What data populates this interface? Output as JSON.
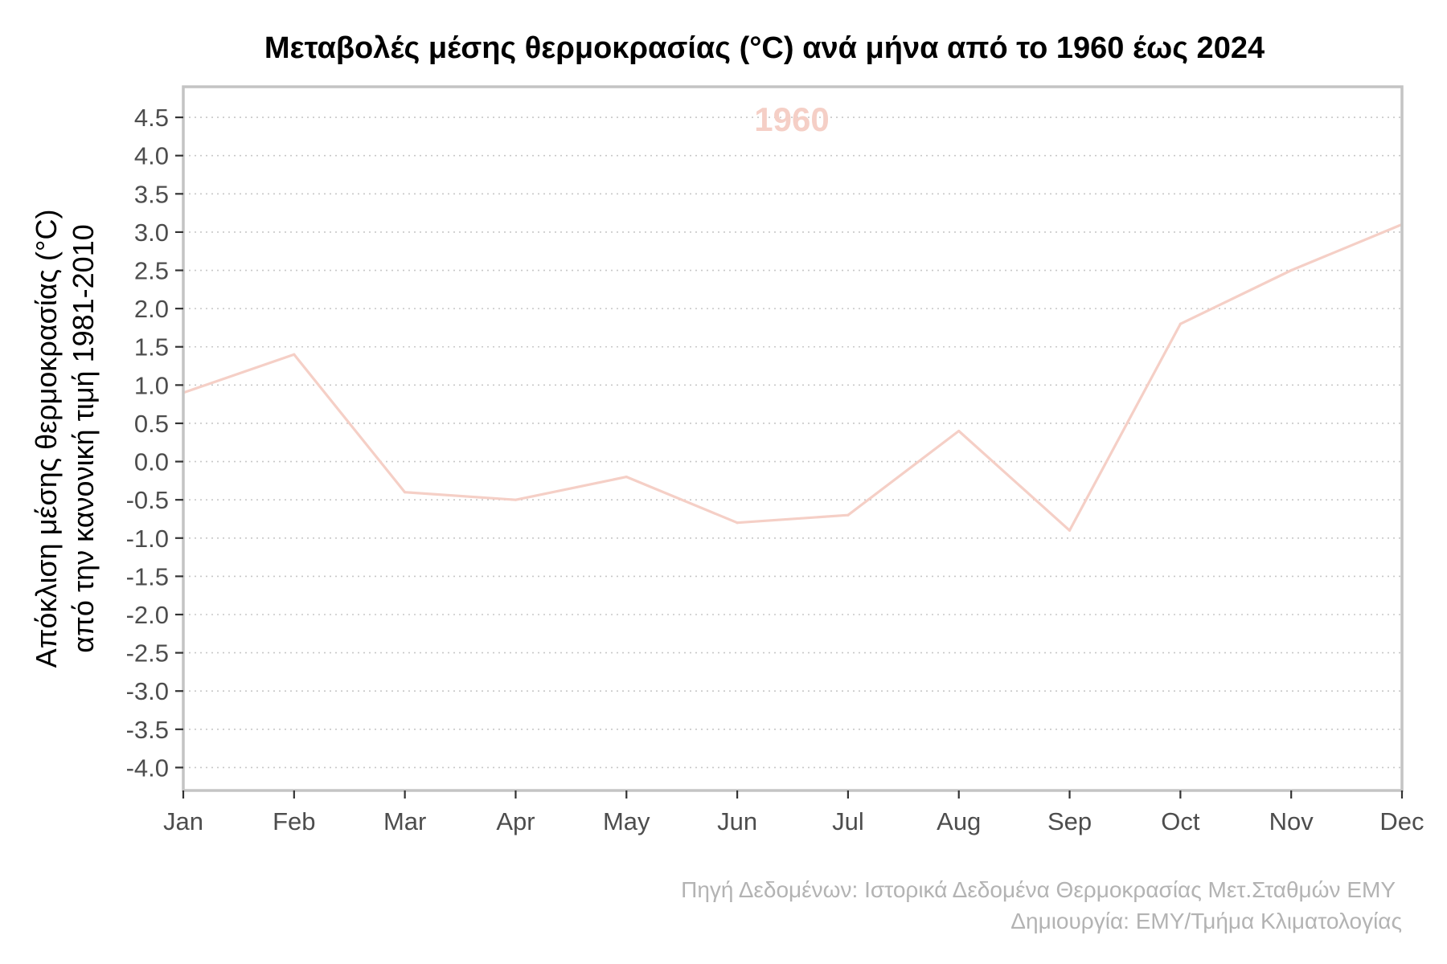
{
  "chart_data": {
    "type": "line",
    "title": "Μεταβολές μέσης θερμοκρασίας (°C) ανά μήνα από το 1960 έως 2024",
    "ylabel_lines": [
      "Απόκλιση μέσης θερμοκρασίας (°C)",
      "από την κανονική τιμή 1981-2010"
    ],
    "xlabel": "",
    "categories": [
      "Jan",
      "Feb",
      "Mar",
      "Apr",
      "May",
      "Jun",
      "Jul",
      "Aug",
      "Sep",
      "Oct",
      "Nov",
      "Dec"
    ],
    "series": [
      {
        "name": "1960",
        "color": "#f5cfc6",
        "values": [
          0.9,
          1.4,
          -0.4,
          -0.5,
          -0.2,
          -0.8,
          -0.7,
          0.4,
          -0.9,
          1.8,
          2.5,
          3.1
        ]
      }
    ],
    "year_label": "1960",
    "y_ticks": [
      "4.5",
      "4.0",
      "3.5",
      "3.0",
      "2.5",
      "2.0",
      "1.5",
      "1.0",
      "0.5",
      "0.0",
      "-0.5",
      "-1.0",
      "-1.5",
      "-2.0",
      "-2.5",
      "-3.0",
      "-3.5",
      "-4.0"
    ],
    "ylim": [
      -4.3,
      4.9
    ],
    "grid": "horizontal dotted",
    "caption_lines": [
      "Πηγή Δεδομένων: Ιστορικά Δεδομένα Θερμοκρασίας Μετ.Σταθμών ΕΜΥ",
      "Δημιουργία: ΕΜΥ/Τμήμα Κλιματολογίας"
    ]
  }
}
